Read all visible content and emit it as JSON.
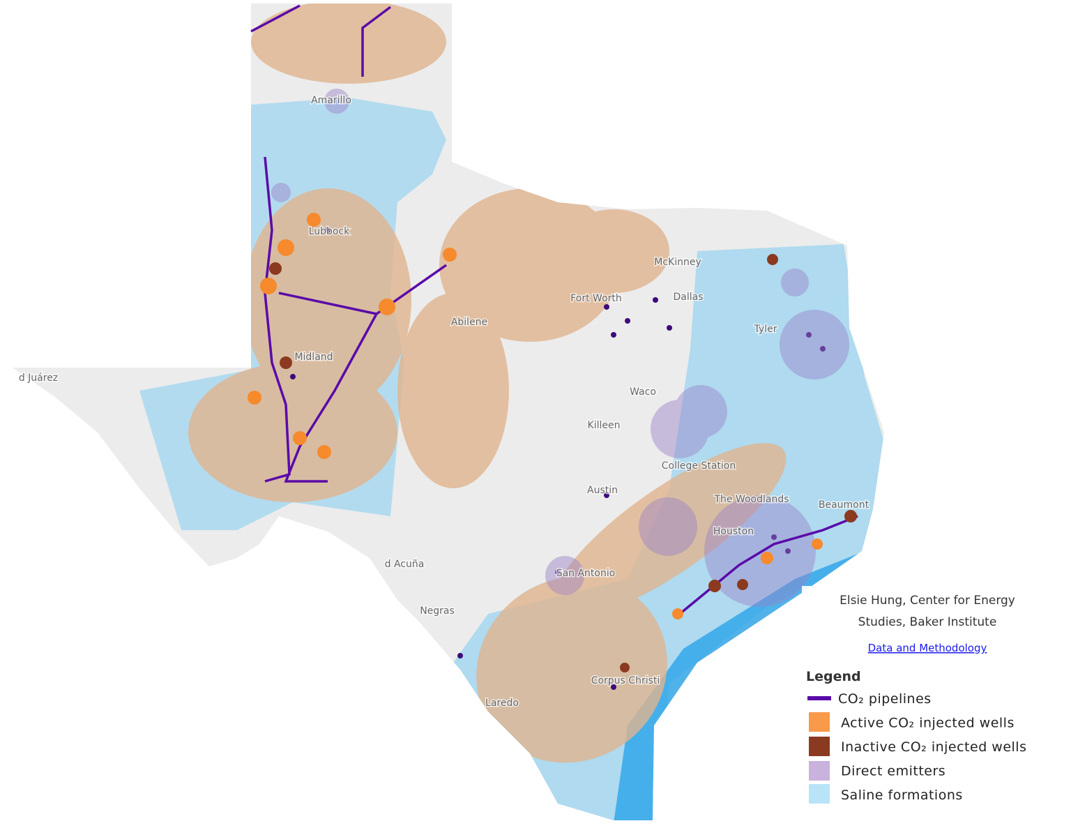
{
  "map": {
    "cities": [
      "Amarillo",
      "Lubbock",
      "Midland",
      "Abilene",
      "Fort Worth",
      "Dallas",
      "McKinney",
      "Tyler",
      "Waco",
      "Killeen",
      "College Station",
      "Austin",
      "The Woodlands",
      "Houston",
      "Beaumont",
      "San Antonio",
      "Corpus Christi",
      "Laredo",
      "d Juárez",
      "d Acuña",
      "Negras"
    ],
    "credit": "Elsie Hung, Center for Energy Studies, Baker Institute",
    "link": "Data and Methodology",
    "legend": {
      "title": "Legend",
      "items": [
        "CO₂ pipelines",
        "Active CO₂ injected wells",
        "Inactive CO₂ injected wells",
        "Direct emitters",
        "Saline formations"
      ]
    }
  }
}
